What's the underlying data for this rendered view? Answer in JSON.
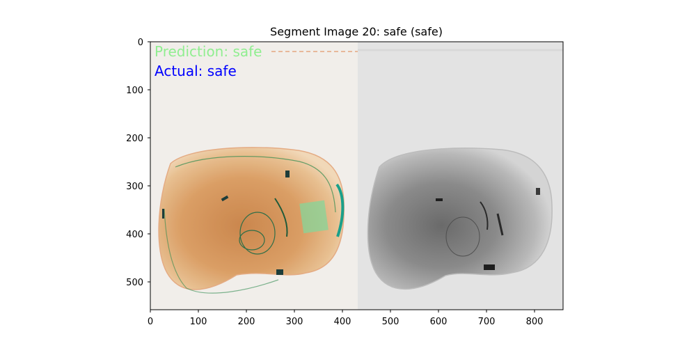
{
  "figure": {
    "title": "Segment Image 20: safe (safe)",
    "overlay": {
      "prediction_text": "Prediction: safe",
      "prediction_color": "#90EE90",
      "actual_text": "Actual: safe",
      "actual_color": "#0000FF"
    },
    "x_axis": {
      "ticks": [
        "0",
        "100",
        "200",
        "300",
        "400",
        "500",
        "600",
        "700",
        "800"
      ]
    },
    "y_axis": {
      "ticks": [
        "0",
        "100",
        "200",
        "300",
        "400",
        "500"
      ]
    },
    "image_description_icons": {
      "left_panel": "xray-color-bag-icon",
      "right_panel": "xray-grayscale-bag-icon"
    }
  }
}
